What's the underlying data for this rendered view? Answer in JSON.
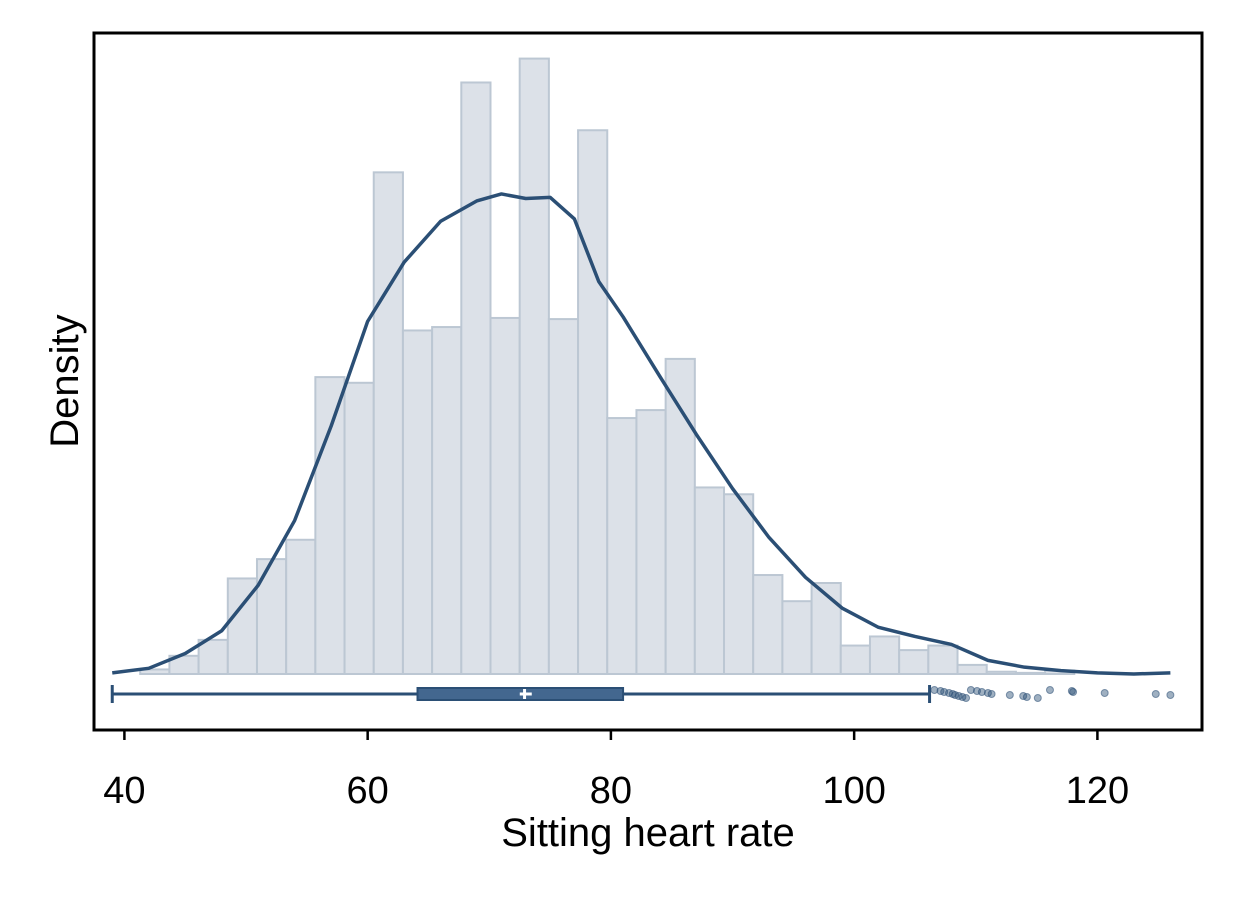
{
  "chart_data": {
    "type": "bar",
    "xlabel": "Sitting heart rate",
    "ylabel": "Density",
    "xlim": [
      37.5,
      128.6
    ],
    "ylim": [
      0,
      0.0538
    ],
    "x_ticks": [
      40,
      60,
      80,
      100,
      120
    ],
    "y_ticks_shown": false,
    "grid": false,
    "histogram": {
      "bin_width": 2.4,
      "bins": [
        {
          "start": 41.3,
          "end": 43.7,
          "density": 0.0004
        },
        {
          "start": 43.7,
          "end": 46.1,
          "density": 0.0016
        },
        {
          "start": 46.1,
          "end": 48.5,
          "density": 0.003
        },
        {
          "start": 48.5,
          "end": 50.9,
          "density": 0.0084
        },
        {
          "start": 50.9,
          "end": 53.3,
          "density": 0.0101
        },
        {
          "start": 53.3,
          "end": 55.7,
          "density": 0.0118
        },
        {
          "start": 55.7,
          "end": 58.1,
          "density": 0.0261
        },
        {
          "start": 58.1,
          "end": 60.5,
          "density": 0.0256
        },
        {
          "start": 60.5,
          "end": 62.9,
          "density": 0.0441
        },
        {
          "start": 62.9,
          "end": 65.3,
          "density": 0.0302
        },
        {
          "start": 65.3,
          "end": 67.7,
          "density": 0.0305
        },
        {
          "start": 67.7,
          "end": 70.1,
          "density": 0.052
        },
        {
          "start": 70.1,
          "end": 72.5,
          "density": 0.0313
        },
        {
          "start": 72.5,
          "end": 74.9,
          "density": 0.0541
        },
        {
          "start": 74.9,
          "end": 77.3,
          "density": 0.0312
        },
        {
          "start": 77.3,
          "end": 79.7,
          "density": 0.0478
        },
        {
          "start": 79.7,
          "end": 82.1,
          "density": 0.0225
        },
        {
          "start": 82.1,
          "end": 84.5,
          "density": 0.0232
        },
        {
          "start": 84.5,
          "end": 86.9,
          "density": 0.0277
        },
        {
          "start": 86.9,
          "end": 89.3,
          "density": 0.0164
        },
        {
          "start": 89.3,
          "end": 91.7,
          "density": 0.0158
        },
        {
          "start": 91.7,
          "end": 94.1,
          "density": 0.0087
        },
        {
          "start": 94.1,
          "end": 96.5,
          "density": 0.0064
        },
        {
          "start": 96.5,
          "end": 98.9,
          "density": 0.008
        },
        {
          "start": 98.9,
          "end": 101.3,
          "density": 0.0025
        },
        {
          "start": 101.3,
          "end": 103.7,
          "density": 0.0033
        },
        {
          "start": 103.7,
          "end": 106.1,
          "density": 0.0021
        },
        {
          "start": 106.1,
          "end": 108.5,
          "density": 0.0025
        },
        {
          "start": 108.5,
          "end": 110.9,
          "density": 0.0008
        },
        {
          "start": 110.9,
          "end": 113.3,
          "density": 0.0002
        },
        {
          "start": 113.3,
          "end": 115.7,
          "density": 0.0001
        },
        {
          "start": 115.7,
          "end": 118.1,
          "density": 0.0003
        }
      ]
    },
    "density_curve": {
      "x": [
        39,
        42,
        45,
        48,
        51,
        54,
        57,
        60,
        63,
        66,
        69,
        71,
        73,
        75,
        77,
        79,
        81,
        84,
        87,
        90,
        93,
        96,
        99,
        102,
        105,
        108,
        111,
        114,
        117,
        120,
        123,
        126
      ],
      "y": [
        0.0001,
        0.0005,
        0.0018,
        0.0038,
        0.0078,
        0.0135,
        0.0218,
        0.031,
        0.0362,
        0.0398,
        0.0416,
        0.0422,
        0.0418,
        0.0419,
        0.04,
        0.0345,
        0.0314,
        0.0262,
        0.0211,
        0.0163,
        0.012,
        0.0085,
        0.0058,
        0.0041,
        0.0033,
        0.0026,
        0.0012,
        0.0006,
        0.0003,
        0.0001,
        0.0,
        0.0001
      ]
    },
    "boxplot": {
      "whisker_low": 39,
      "q1": 64.1,
      "median": 72.9,
      "mean": 73.0,
      "q3": 81.0,
      "whisker_high": 106.2,
      "outliers": [
        106.6,
        107.1,
        107.4,
        107.8,
        108.1,
        108.3,
        108.6,
        108.9,
        109.2,
        109.6,
        110.1,
        110.5,
        111.0,
        111.3,
        112.8,
        113.9,
        114.2,
        115.1,
        116.1,
        117.9,
        118.0,
        120.6,
        124.8,
        126.0
      ],
      "color": "#2b4f75"
    },
    "colors": {
      "bar_fill": "#dce1e8",
      "bar_stroke": "#bcc7d3",
      "curve": "#2b4f75",
      "box_fill": "#43678f"
    }
  }
}
